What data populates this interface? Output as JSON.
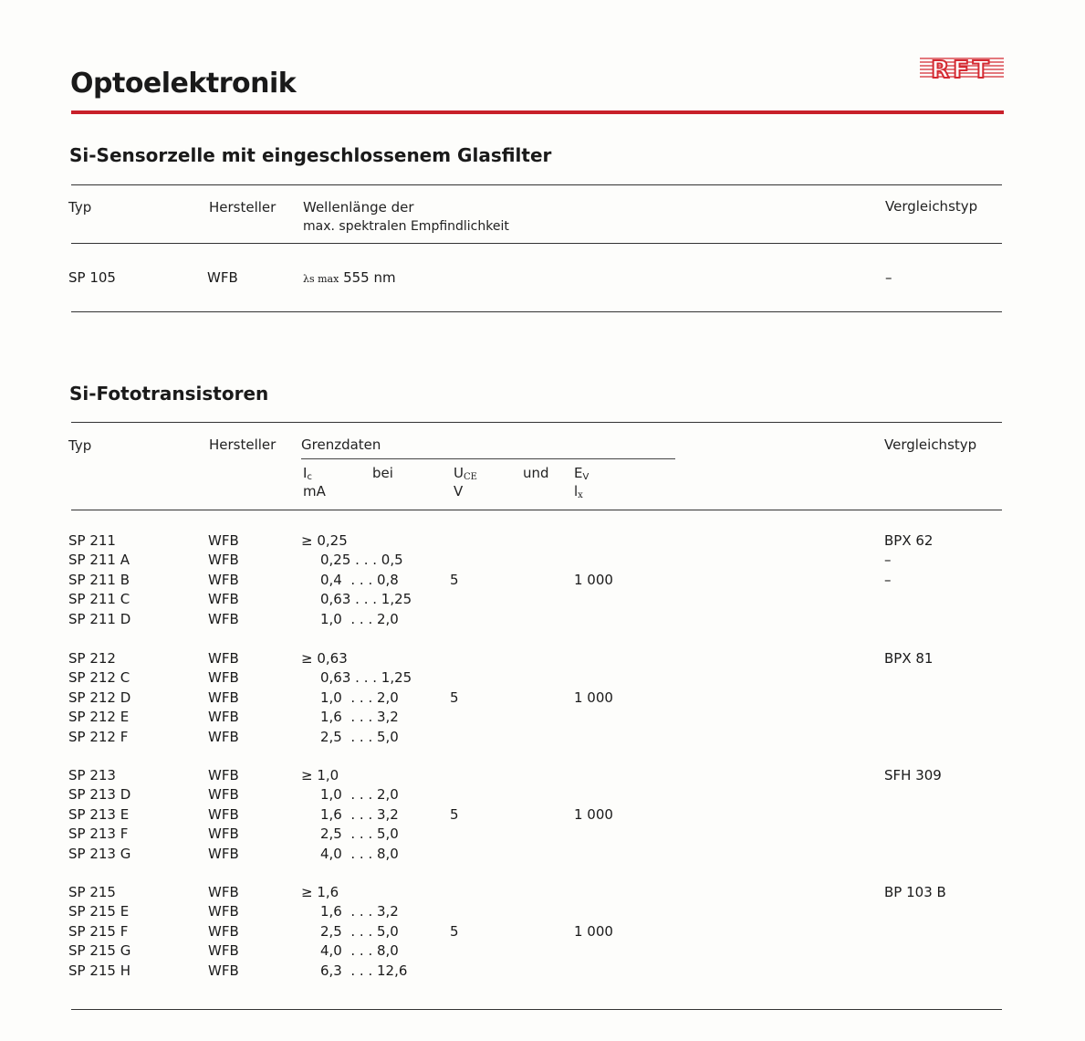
{
  "page_title": "Optoelektronik",
  "logo_text": "RFT",
  "accent_color": "#c8202a",
  "section1": {
    "title": "Si-Sensorzelle mit eingeschlossenem Glasfilter",
    "headers": {
      "typ": "Typ",
      "hersteller": "Hersteller",
      "wellenlaenge_1": "Wellenlänge der",
      "wellenlaenge_2": "max. spektralen Empfindlichkeit",
      "vergleichstyp": "Vergleichstyp"
    },
    "row": {
      "typ": "SP 105",
      "hersteller": "WFB",
      "lambda_symbol": "λs max",
      "value": "555 nm",
      "vergleichstyp": "–"
    }
  },
  "section2": {
    "title": "Si-Fototransistoren",
    "headers": {
      "typ": "Typ",
      "hersteller": "Hersteller",
      "grenzdaten": "Grenzdaten",
      "ic": "I",
      "ic_sub": "c",
      "bei": "bei",
      "uce": "U",
      "uce_sub": "CE",
      "und": "und",
      "ev": "E",
      "ev_sub": "V",
      "ic_unit": "mA",
      "uce_unit": "V",
      "ev_unit": "l",
      "ev_unit_sub": "x",
      "vergleichstyp": "Vergleichstyp"
    },
    "groups": [
      {
        "uce": "5",
        "ev": "1 000",
        "rows": [
          {
            "typ": "SP 211",
            "hersteller": "WFB",
            "ic": "≥ 0,25",
            "vergleich": "BPX 62"
          },
          {
            "typ": "SP 211 A",
            "hersteller": "WFB",
            "ic": "0,25 . . . 0,5",
            "vergleich": "–"
          },
          {
            "typ": "SP 211 B",
            "hersteller": "WFB",
            "ic": "0,4  . . . 0,8",
            "vergleich": "–"
          },
          {
            "typ": "SP 211 C",
            "hersteller": "WFB",
            "ic": "0,63 . . . 1,25",
            "vergleich": ""
          },
          {
            "typ": "SP 211 D",
            "hersteller": "WFB",
            "ic": "1,0  . . . 2,0",
            "vergleich": ""
          }
        ]
      },
      {
        "uce": "5",
        "ev": "1 000",
        "rows": [
          {
            "typ": "SP 212",
            "hersteller": "WFB",
            "ic": "≥ 0,63",
            "vergleich": "BPX 81"
          },
          {
            "typ": "SP 212 C",
            "hersteller": "WFB",
            "ic": "0,63 . . . 1,25",
            "vergleich": ""
          },
          {
            "typ": "SP 212 D",
            "hersteller": "WFB",
            "ic": "1,0  . . . 2,0",
            "vergleich": ""
          },
          {
            "typ": "SP 212 E",
            "hersteller": "WFB",
            "ic": "1,6  . . . 3,2",
            "vergleich": ""
          },
          {
            "typ": "SP 212 F",
            "hersteller": "WFB",
            "ic": "2,5  . . . 5,0",
            "vergleich": ""
          }
        ]
      },
      {
        "uce": "5",
        "ev": "1 000",
        "rows": [
          {
            "typ": "SP 213",
            "hersteller": "WFB",
            "ic": "≥ 1,0",
            "vergleich": "SFH 309"
          },
          {
            "typ": "SP 213 D",
            "hersteller": "WFB",
            "ic": "1,0  . . . 2,0",
            "vergleich": ""
          },
          {
            "typ": "SP 213 E",
            "hersteller": "WFB",
            "ic": "1,6  . . . 3,2",
            "vergleich": ""
          },
          {
            "typ": "SP 213 F",
            "hersteller": "WFB",
            "ic": "2,5  . . . 5,0",
            "vergleich": ""
          },
          {
            "typ": "SP 213 G",
            "hersteller": "WFB",
            "ic": "4,0  . . . 8,0",
            "vergleich": ""
          }
        ]
      },
      {
        "uce": "5",
        "ev": "1 000",
        "rows": [
          {
            "typ": "SP 215",
            "hersteller": "WFB",
            "ic": "≥ 1,6",
            "vergleich": "BP 103 B"
          },
          {
            "typ": "SP 215 E",
            "hersteller": "WFB",
            "ic": "1,6  . . . 3,2",
            "vergleich": ""
          },
          {
            "typ": "SP 215 F",
            "hersteller": "WFB",
            "ic": "2,5  . . . 5,0",
            "vergleich": ""
          },
          {
            "typ": "SP 215 G",
            "hersteller": "WFB",
            "ic": "4,0  . . . 8,0",
            "vergleich": ""
          },
          {
            "typ": "SP 215 H",
            "hersteller": "WFB",
            "ic": "6,3  . . . 12,6",
            "vergleich": ""
          }
        ]
      }
    ]
  }
}
